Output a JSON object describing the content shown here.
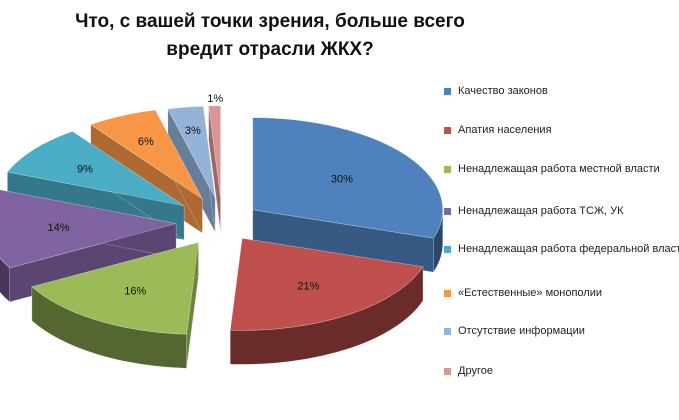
{
  "chart_data": {
    "type": "pie",
    "title": "Что, с вашей точки зрения, больше всего вредит отрасли ЖКХ?",
    "unit": "%",
    "legend_position": "right",
    "slices": [
      {
        "label": "Качество законов",
        "value": 30,
        "display": "30%",
        "color": "#4f81bd"
      },
      {
        "label": "Апатия населения",
        "value": 21,
        "display": "21%",
        "color": "#c0504d"
      },
      {
        "label": "Ненадлежащая работа местной власти",
        "value": 16,
        "display": "16%",
        "color": "#9bbb59"
      },
      {
        "label": "Ненадлежащая работа ТСЖ, УК",
        "value": 14,
        "display": "14%",
        "color": "#8064a2"
      },
      {
        "label": "Ненадлежащая работа федеральной власти",
        "value": 9,
        "display": "9%",
        "color": "#4bacc6"
      },
      {
        "label": "«Естественные» монополии",
        "value": 6,
        "display": "6%",
        "color": "#f79646"
      },
      {
        "label": "Отсутствие информации",
        "value": 3,
        "display": "3%",
        "color": "#95b3d7"
      },
      {
        "label": "Другое",
        "value": 1,
        "display": "1%",
        "color": "#d99694"
      }
    ]
  }
}
